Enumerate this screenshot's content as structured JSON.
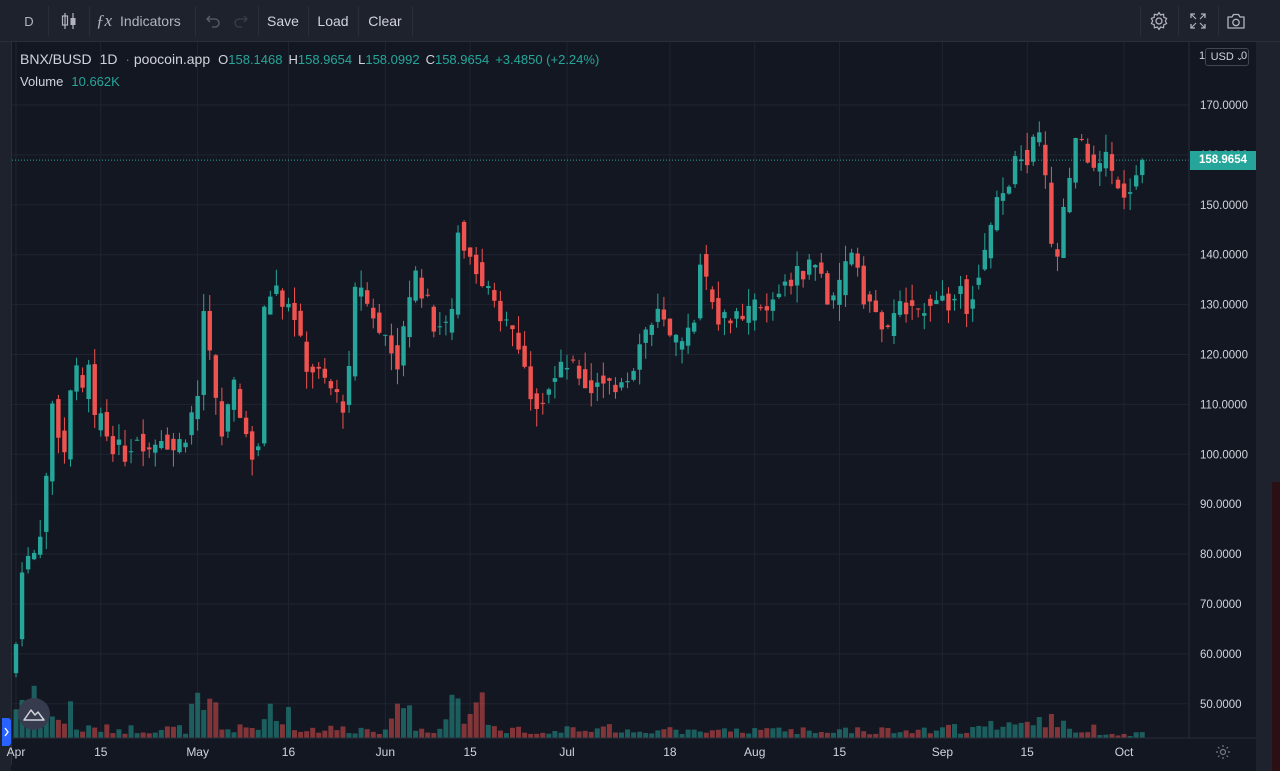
{
  "toolbar": {
    "interval": "D",
    "indicators_label": "Indicators",
    "save_label": "Save",
    "load_label": "Load",
    "clear_label": "Clear"
  },
  "legend": {
    "symbol": "BNX/BUSD",
    "interval": "1D",
    "exchange": "poocoin.app",
    "o_label": "O",
    "o": "158.1468",
    "h_label": "H",
    "h": "158.9654",
    "l_label": "L",
    "l": "158.0992",
    "c_label": "C",
    "c": "158.9654",
    "change": "+3.4850 (+2.24%)",
    "volume_label": "Volume",
    "volume": "10.662K"
  },
  "price_scale": {
    "currency_button": "USD",
    "top_marker": "1",
    "last_price": "158.9654"
  },
  "colors": {
    "up": "#26a69a",
    "down": "#ef5350",
    "background": "#131722",
    "grid": "#1f2430"
  },
  "chart_data": {
    "type": "candlestick",
    "title": "BNX/BUSD",
    "interval": "1D",
    "ylim": [
      45,
      176
    ],
    "y_ticks": [
      "170.0000",
      "160.0000",
      "150.0000",
      "140.0000",
      "130.0000",
      "120.0000",
      "110.0000",
      "100.0000",
      "90.0000",
      "80.0000",
      "70.0000",
      "60.0000",
      "50.0000"
    ],
    "y_tick_values": [
      170,
      160,
      150,
      140,
      130,
      120,
      110,
      100,
      90,
      80,
      70,
      60,
      50
    ],
    "x_ticks": [
      "Apr",
      "15",
      "May",
      "16",
      "Jun",
      "15",
      "Jul",
      "18",
      "Aug",
      "15",
      "Sep",
      "15",
      "Oct"
    ],
    "x_tick_days": [
      0,
      14,
      30,
      45,
      61,
      75,
      91,
      108,
      122,
      136,
      153,
      167,
      183
    ],
    "grid": true,
    "last_price": 158.9654,
    "days": 187,
    "anchors": [
      [
        0,
        62
      ],
      [
        1,
        78
      ],
      [
        3,
        80
      ],
      [
        4,
        85
      ],
      [
        5,
        95
      ],
      [
        6,
        110
      ],
      [
        7,
        105
      ],
      [
        8,
        100
      ],
      [
        9,
        113
      ],
      [
        10,
        116
      ],
      [
        11,
        112
      ],
      [
        12,
        117
      ],
      [
        13,
        106
      ],
      [
        14,
        108
      ],
      [
        15,
        104
      ],
      [
        16,
        102
      ],
      [
        18,
        100
      ],
      [
        20,
        104
      ],
      [
        22,
        101
      ],
      [
        24,
        104
      ],
      [
        26,
        101
      ],
      [
        28,
        104
      ],
      [
        30,
        112
      ],
      [
        31,
        128
      ],
      [
        32,
        120
      ],
      [
        33,
        110
      ],
      [
        34,
        104
      ],
      [
        36,
        113
      ],
      [
        38,
        104
      ],
      [
        39,
        100
      ],
      [
        40,
        102
      ],
      [
        41,
        128
      ],
      [
        42,
        132
      ],
      [
        43,
        134
      ],
      [
        44,
        130
      ],
      [
        45,
        130
      ],
      [
        46,
        128
      ],
      [
        47,
        122
      ],
      [
        48,
        118
      ],
      [
        50,
        116
      ],
      [
        52,
        113
      ],
      [
        54,
        110
      ],
      [
        55,
        116
      ],
      [
        56,
        132
      ],
      [
        57,
        134
      ],
      [
        58,
        130
      ],
      [
        59,
        128
      ],
      [
        60,
        124
      ],
      [
        61,
        124
      ],
      [
        62,
        121
      ],
      [
        63,
        119
      ],
      [
        64,
        124
      ],
      [
        65,
        132
      ],
      [
        66,
        136
      ],
      [
        67,
        133
      ],
      [
        68,
        130
      ],
      [
        69,
        126
      ],
      [
        70,
        126
      ],
      [
        71,
        125
      ],
      [
        72,
        128
      ],
      [
        73,
        146
      ],
      [
        74,
        142
      ],
      [
        75,
        140
      ],
      [
        76,
        138
      ],
      [
        77,
        134
      ],
      [
        78,
        132
      ],
      [
        80,
        128
      ],
      [
        82,
        125
      ],
      [
        83,
        122
      ],
      [
        84,
        117
      ],
      [
        85,
        113
      ],
      [
        86,
        111
      ],
      [
        87,
        112
      ],
      [
        88,
        114
      ],
      [
        89,
        115
      ],
      [
        90,
        117
      ],
      [
        91,
        118
      ],
      [
        92,
        117
      ],
      [
        93,
        116
      ],
      [
        94,
        114
      ],
      [
        95,
        113
      ],
      [
        96,
        115
      ],
      [
        97,
        115
      ],
      [
        98,
        114
      ],
      [
        99,
        114
      ],
      [
        100,
        115
      ],
      [
        101,
        116
      ],
      [
        102,
        118
      ],
      [
        103,
        122
      ],
      [
        104,
        125
      ],
      [
        105,
        126
      ],
      [
        106,
        128
      ],
      [
        107,
        126
      ],
      [
        108,
        123
      ],
      [
        109,
        122
      ],
      [
        110,
        121
      ],
      [
        111,
        124
      ],
      [
        112,
        128
      ],
      [
        113,
        140
      ],
      [
        114,
        134
      ],
      [
        115,
        132
      ],
      [
        116,
        128
      ],
      [
        117,
        127
      ],
      [
        118,
        128
      ],
      [
        119,
        127
      ],
      [
        120,
        126
      ],
      [
        121,
        128
      ],
      [
        122,
        130
      ],
      [
        123,
        129
      ],
      [
        124,
        128
      ],
      [
        125,
        131
      ],
      [
        126,
        133
      ],
      [
        127,
        135
      ],
      [
        128,
        135
      ],
      [
        129,
        136
      ],
      [
        130,
        137
      ],
      [
        131,
        138
      ],
      [
        132,
        138
      ],
      [
        133,
        136
      ],
      [
        134,
        131
      ],
      [
        135,
        130
      ],
      [
        136,
        133
      ],
      [
        137,
        138
      ],
      [
        138,
        141
      ],
      [
        139,
        138
      ],
      [
        140,
        132
      ],
      [
        141,
        130
      ],
      [
        142,
        128
      ],
      [
        143,
        126
      ],
      [
        144,
        124
      ],
      [
        145,
        127
      ],
      [
        146,
        131
      ],
      [
        147,
        130
      ],
      [
        148,
        128
      ],
      [
        149,
        129
      ],
      [
        150,
        130
      ],
      [
        151,
        131
      ],
      [
        152,
        132
      ],
      [
        153,
        131
      ],
      [
        154,
        130
      ],
      [
        155,
        131
      ],
      [
        156,
        134
      ],
      [
        157,
        130
      ],
      [
        158,
        133
      ],
      [
        159,
        136
      ],
      [
        160,
        140
      ],
      [
        161,
        145
      ],
      [
        162,
        150
      ],
      [
        163,
        152
      ],
      [
        164,
        155
      ],
      [
        165,
        158
      ],
      [
        166,
        160
      ],
      [
        167,
        158
      ],
      [
        168,
        162
      ],
      [
        169,
        163
      ],
      [
        170,
        155
      ],
      [
        171,
        141
      ],
      [
        172,
        140
      ],
      [
        173,
        148
      ],
      [
        174,
        155
      ],
      [
        175,
        162
      ],
      [
        176,
        163
      ],
      [
        177,
        160
      ],
      [
        178,
        156
      ],
      [
        179,
        158
      ],
      [
        180,
        160
      ],
      [
        181,
        156
      ],
      [
        182,
        155
      ],
      [
        183,
        153
      ],
      [
        184,
        154
      ],
      [
        185,
        156
      ],
      [
        186,
        158.9654
      ]
    ],
    "volume": {
      "label": "Volume",
      "last": "10.662K"
    }
  }
}
